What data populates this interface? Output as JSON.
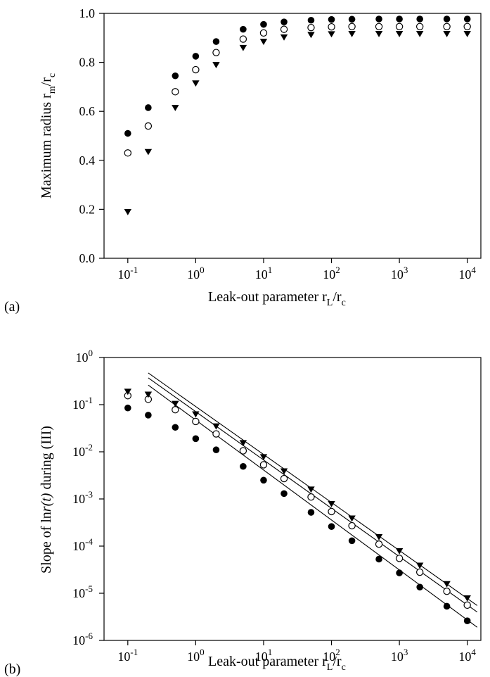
{
  "chart_data": [
    {
      "panel_label": "(a)",
      "type": "scatter",
      "xscale": "log",
      "xlim_exp": [
        -1.35,
        4.2
      ],
      "ylim": [
        0,
        1.0
      ],
      "xlabel": {
        "main": "Leak-out parameter r",
        "sub1": "L",
        "mid": "/r",
        "sub2": "c"
      },
      "ylabel": {
        "main": "Maximum radius r",
        "sub1": "m",
        "mid": "/r",
        "sub2": "c"
      },
      "xticks": [
        {
          "base": "10",
          "exp": "-1",
          "value": -1
        },
        {
          "base": "10",
          "exp": "0",
          "value": 0
        },
        {
          "base": "10",
          "exp": "1",
          "value": 1
        },
        {
          "base": "10",
          "exp": "2",
          "value": 2
        },
        {
          "base": "10",
          "exp": "3",
          "value": 3
        },
        {
          "base": "10",
          "exp": "4",
          "value": 4
        }
      ],
      "yticks": [
        "0.0",
        "0.2",
        "0.4",
        "0.6",
        "0.8",
        "1.0"
      ],
      "x": [
        0.1,
        0.2,
        0.5,
        1,
        2,
        5,
        10,
        20,
        50,
        100,
        200,
        500,
        1000,
        2000,
        5000,
        10000
      ],
      "series": [
        {
          "marker": "filled-circle",
          "values": [
            0.51,
            0.615,
            0.745,
            0.825,
            0.885,
            0.935,
            0.955,
            0.965,
            0.972,
            0.975,
            0.976,
            0.977,
            0.977,
            0.977,
            0.977,
            0.977
          ]
        },
        {
          "marker": "open-circle",
          "values": [
            0.43,
            0.54,
            0.68,
            0.77,
            0.84,
            0.895,
            0.92,
            0.935,
            0.942,
            0.945,
            0.946,
            0.946,
            0.946,
            0.946,
            0.946,
            0.946
          ]
        },
        {
          "marker": "filled-triangle-down",
          "values": [
            0.19,
            0.435,
            0.615,
            0.715,
            0.79,
            0.86,
            0.885,
            0.903,
            0.913,
            0.916,
            0.917,
            0.917,
            0.917,
            0.917,
            0.917,
            0.917
          ]
        }
      ]
    },
    {
      "panel_label": "(b)",
      "type": "scatter",
      "xscale": "log",
      "yscale": "log",
      "xlim_exp": [
        -1.35,
        4.2
      ],
      "ylim_exp": [
        -6,
        0
      ],
      "xlabel": {
        "main": "Leak-out parameter r",
        "sub1": "L",
        "mid": "/r",
        "sub2": "c"
      },
      "ylabel": {
        "main": "Slope of ln",
        "italic": "r(t)",
        "tail": " during (III)"
      },
      "xticks": [
        {
          "base": "10",
          "exp": "-1",
          "value": -1
        },
        {
          "base": "10",
          "exp": "0",
          "value": 0
        },
        {
          "base": "10",
          "exp": "1",
          "value": 1
        },
        {
          "base": "10",
          "exp": "2",
          "value": 2
        },
        {
          "base": "10",
          "exp": "3",
          "value": 3
        },
        {
          "base": "10",
          "exp": "4",
          "value": 4
        }
      ],
      "yticks": [
        {
          "base": "10",
          "exp": "0",
          "value": 0
        },
        {
          "base": "10",
          "exp": "-1",
          "value": -1
        },
        {
          "base": "10",
          "exp": "-2",
          "value": -2
        },
        {
          "base": "10",
          "exp": "-3",
          "value": -3
        },
        {
          "base": "10",
          "exp": "-4",
          "value": -4
        },
        {
          "base": "10",
          "exp": "-5",
          "value": -5
        },
        {
          "base": "10",
          "exp": "-6",
          "value": -6
        }
      ],
      "x": [
        0.1,
        0.2,
        0.5,
        1,
        2,
        5,
        10,
        20,
        50,
        100,
        200,
        500,
        1000,
        2000,
        5000,
        10000
      ],
      "series": [
        {
          "marker": "filled-circle",
          "values": [
            0.085,
            0.06,
            0.033,
            0.019,
            0.011,
            0.0049,
            0.0025,
            0.0013,
            0.00052,
            0.00026,
            0.00013,
            5.3e-05,
            2.7e-05,
            1.35e-05,
            5.3e-06,
            2.6e-06
          ]
        },
        {
          "marker": "open-circle",
          "values": [
            0.155,
            0.13,
            0.078,
            0.044,
            0.024,
            0.0105,
            0.0053,
            0.0027,
            0.0011,
            0.00054,
            0.00027,
            0.00011,
            5.5e-05,
            2.8e-05,
            1.1e-05,
            5.6e-06
          ]
        },
        {
          "marker": "filled-triangle-down",
          "values": [
            0.19,
            0.165,
            0.105,
            0.063,
            0.035,
            0.0155,
            0.0078,
            0.0039,
            0.0016,
            0.00079,
            0.00039,
            0.000157,
            7.9e-05,
            3.9e-05,
            1.58e-05,
            7.9e-06
          ]
        }
      ],
      "fit_lines": [
        {
          "x": [
            0.2,
            14000
          ],
          "y": [
            0.26,
            1.9e-06
          ]
        },
        {
          "x": [
            0.2,
            14000
          ],
          "y": [
            0.37,
            4e-06
          ]
        },
        {
          "x": [
            0.2,
            14000
          ],
          "y": [
            0.47,
            5.5e-06
          ]
        }
      ]
    }
  ]
}
